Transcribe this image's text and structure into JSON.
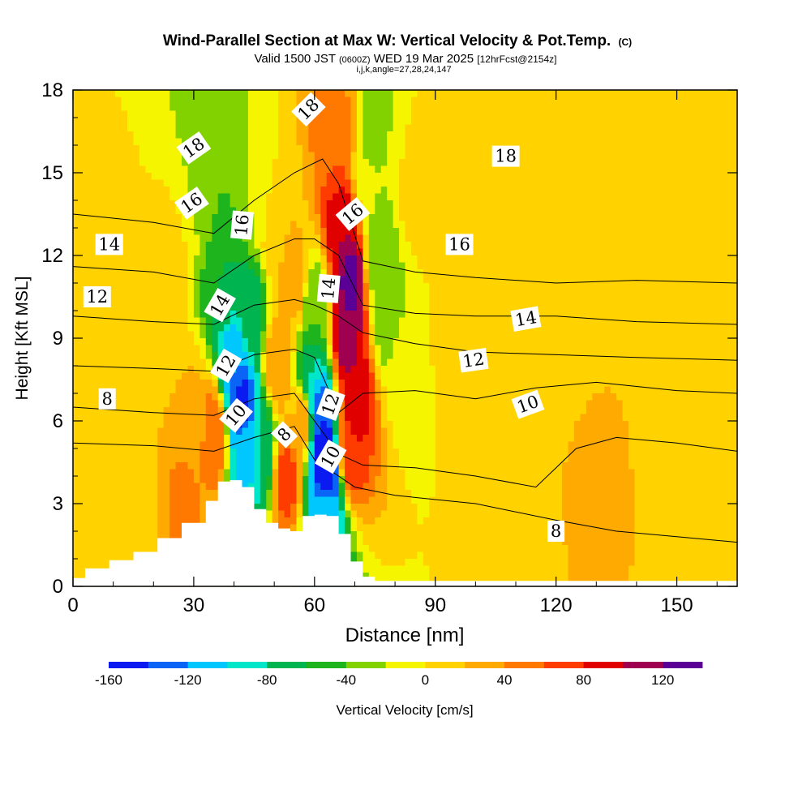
{
  "chart_data": {
    "type": "heatmap",
    "title": "Wind-Parallel Section at Max W: Vertical Velocity & Pot.Temp.",
    "title_mark": "(C)",
    "subtitle_pre": "Valid 1500 JST",
    "subtitle_utc": "(0600Z)",
    "subtitle_date": "WED 19 Mar 2025",
    "subtitle_run": "[12hrFcst@2154z]",
    "subtitle_ijk": "i,j,k,angle=27,28,24,147",
    "xlabel": "Distance [nm]",
    "ylabel": "Height [Kft MSL]",
    "xlim": [
      0,
      165
    ],
    "ylim": [
      0,
      18
    ],
    "x_ticks": [
      "0",
      "30",
      "60",
      "90",
      "120",
      "150"
    ],
    "y_ticks": [
      "0",
      "3",
      "6",
      "9",
      "12",
      "15",
      "18"
    ],
    "colorbar": {
      "label": "Vertical Velocity [cm/s]",
      "tick_labels": [
        "-160",
        "-120",
        "-80",
        "-40",
        "0",
        "40",
        "80",
        "120"
      ],
      "levels": [
        -160,
        -140,
        -120,
        -100,
        -80,
        -60,
        -40,
        -20,
        0,
        20,
        40,
        60,
        80,
        100,
        120,
        140
      ],
      "colors": [
        "#0a1af0",
        "#0a64f5",
        "#00c8ff",
        "#00e6c8",
        "#00b450",
        "#1eb41e",
        "#82d200",
        "#f5f500",
        "#ffd200",
        "#ffaa00",
        "#ff7800",
        "#ff3c00",
        "#e10000",
        "#a00050",
        "#5a0096"
      ]
    },
    "terrain": [
      [
        0,
        0.3
      ],
      [
        3,
        0.65
      ],
      [
        9,
        0.95
      ],
      [
        15,
        1.25
      ],
      [
        21,
        1.75
      ],
      [
        27,
        2.3
      ],
      [
        33,
        3.1
      ],
      [
        36,
        3.8
      ],
      [
        39,
        3.85
      ],
      [
        42,
        3.6
      ],
      [
        45,
        2.8
      ],
      [
        48,
        2.3
      ],
      [
        51,
        2.1
      ],
      [
        54,
        2.0
      ],
      [
        57,
        2.55
      ],
      [
        60,
        2.6
      ],
      [
        63,
        2.55
      ],
      [
        66,
        1.9
      ],
      [
        69,
        0.9
      ],
      [
        72,
        0.35
      ],
      [
        75,
        0.2
      ],
      [
        165,
        0.2
      ]
    ],
    "vv_field": [
      {
        "x": 0,
        "y": 15,
        "w": 0
      },
      {
        "x": 8,
        "y": 12,
        "w": 5
      },
      {
        "x": 5,
        "y": 5,
        "w": 10
      },
      {
        "x": 15,
        "y": 9,
        "w": 15
      },
      {
        "x": 25,
        "y": 12,
        "w": 10
      },
      {
        "x": 15,
        "y": 1.5,
        "w": 0
      },
      {
        "x": 28,
        "y": 3,
        "w": 45
      },
      {
        "x": 30,
        "y": 6,
        "w": 25
      },
      {
        "x": 35,
        "y": 5.5,
        "w": 60
      },
      {
        "x": 30,
        "y": 14,
        "w": -20
      },
      {
        "x": 34,
        "y": 16,
        "w": -40
      },
      {
        "x": 37,
        "y": 11,
        "w": -60
      },
      {
        "x": 40,
        "y": 8,
        "w": -120
      },
      {
        "x": 42,
        "y": 6.5,
        "w": -150
      },
      {
        "x": 43,
        "y": 5,
        "w": -110
      },
      {
        "x": 44,
        "y": 10,
        "w": -70
      },
      {
        "x": 46,
        "y": 14,
        "w": -20
      },
      {
        "x": 47,
        "y": 5,
        "w": -80
      },
      {
        "x": 51,
        "y": 8,
        "w": 40
      },
      {
        "x": 53,
        "y": 4,
        "w": 70
      },
      {
        "x": 50,
        "y": 13,
        "w": 20
      },
      {
        "x": 55,
        "y": 11,
        "w": 30
      },
      {
        "x": 57,
        "y": 6,
        "w": 30
      },
      {
        "x": 59,
        "y": 7.5,
        "w": -80
      },
      {
        "x": 61,
        "y": 6.5,
        "w": -130
      },
      {
        "x": 62,
        "y": 5,
        "w": -160
      },
      {
        "x": 63,
        "y": 4,
        "w": -150
      },
      {
        "x": 60,
        "y": 10,
        "w": -40
      },
      {
        "x": 63,
        "y": 2.5,
        "w": -100
      },
      {
        "x": 66,
        "y": 16,
        "w": 60
      },
      {
        "x": 67,
        "y": 13,
        "w": 100
      },
      {
        "x": 69,
        "y": 11,
        "w": 130
      },
      {
        "x": 68,
        "y": 9,
        "w": 110
      },
      {
        "x": 70,
        "y": 7,
        "w": 100
      },
      {
        "x": 69,
        "y": 5,
        "w": 80
      },
      {
        "x": 67,
        "y": 17.5,
        "w": 40
      },
      {
        "x": 73,
        "y": 15,
        "w": -20
      },
      {
        "x": 76,
        "y": 12,
        "w": -40
      },
      {
        "x": 78,
        "y": 10,
        "w": -40
      },
      {
        "x": 74,
        "y": 17,
        "w": -30
      },
      {
        "x": 82,
        "y": 8,
        "w": -10
      },
      {
        "x": 85,
        "y": 14,
        "w": 5
      },
      {
        "x": 95,
        "y": 10,
        "w": 10
      },
      {
        "x": 100,
        "y": 16,
        "w": 15
      },
      {
        "x": 105,
        "y": 5,
        "w": 5
      },
      {
        "x": 115,
        "y": 13,
        "w": 20
      },
      {
        "x": 125,
        "y": 10,
        "w": 5
      },
      {
        "x": 130,
        "y": 4,
        "w": 25
      },
      {
        "x": 140,
        "y": 14,
        "w": 10
      },
      {
        "x": 150,
        "y": 8,
        "w": 5
      },
      {
        "x": 155,
        "y": 15,
        "w": 15
      },
      {
        "x": 160,
        "y": 3,
        "w": 0
      },
      {
        "x": 95,
        "y": 2,
        "w": 0
      },
      {
        "x": 110,
        "y": 2,
        "w": 15
      }
    ],
    "theta_contours": [
      {
        "label": "8",
        "points": [
          [
            0,
            5.2
          ],
          [
            20,
            5.1
          ],
          [
            35,
            4.9
          ],
          [
            45,
            5.4
          ],
          [
            55,
            5.8
          ],
          [
            60,
            4.6
          ],
          [
            65,
            4.1
          ],
          [
            70,
            3.6
          ],
          [
            80,
            3.3
          ],
          [
            100,
            3.0
          ],
          [
            120,
            2.4
          ],
          [
            135,
            2.0
          ],
          [
            150,
            1.8
          ],
          [
            165,
            1.6
          ]
        ]
      },
      {
        "label": "10",
        "points": [
          [
            0,
            6.5
          ],
          [
            20,
            6.3
          ],
          [
            35,
            6.2
          ],
          [
            45,
            6.8
          ],
          [
            55,
            7.0
          ],
          [
            60,
            6.0
          ],
          [
            66,
            4.8
          ],
          [
            72,
            4.4
          ],
          [
            85,
            4.3
          ],
          [
            100,
            4.0
          ],
          [
            115,
            3.6
          ],
          [
            125,
            5.0
          ],
          [
            135,
            5.4
          ],
          [
            150,
            5.2
          ],
          [
            165,
            4.9
          ]
        ]
      },
      {
        "label": "12",
        "points": [
          [
            0,
            8.0
          ],
          [
            20,
            7.9
          ],
          [
            35,
            7.8
          ],
          [
            45,
            8.4
          ],
          [
            55,
            8.6
          ],
          [
            60,
            8.3
          ],
          [
            66,
            6.3
          ],
          [
            72,
            7.0
          ],
          [
            85,
            7.1
          ],
          [
            100,
            6.8
          ],
          [
            115,
            7.2
          ],
          [
            130,
            7.4
          ],
          [
            150,
            7.1
          ],
          [
            165,
            7.0
          ]
        ]
      },
      {
        "label": "14",
        "points": [
          [
            0,
            9.8
          ],
          [
            20,
            9.6
          ],
          [
            35,
            9.5
          ],
          [
            45,
            10.2
          ],
          [
            55,
            10.4
          ],
          [
            60,
            10.2
          ],
          [
            66,
            9.8
          ],
          [
            72,
            9.2
          ],
          [
            85,
            8.8
          ],
          [
            100,
            8.5
          ],
          [
            120,
            8.4
          ],
          [
            140,
            8.3
          ],
          [
            165,
            8.2
          ]
        ]
      },
      {
        "label": "16",
        "points": [
          [
            0,
            11.6
          ],
          [
            20,
            11.4
          ],
          [
            35,
            11.0
          ],
          [
            45,
            12.0
          ],
          [
            55,
            12.6
          ],
          [
            60,
            12.6
          ],
          [
            66,
            12.0
          ],
          [
            72,
            10.2
          ],
          [
            85,
            9.9
          ],
          [
            100,
            9.8
          ],
          [
            120,
            9.8
          ],
          [
            140,
            9.6
          ],
          [
            165,
            9.5
          ]
        ]
      },
      {
        "label": "18",
        "points": [
          [
            0,
            13.5
          ],
          [
            20,
            13.2
          ],
          [
            35,
            12.8
          ],
          [
            45,
            14.0
          ],
          [
            55,
            15.0
          ],
          [
            62,
            15.5
          ],
          [
            66,
            14.6
          ],
          [
            72,
            11.8
          ],
          [
            85,
            11.4
          ],
          [
            100,
            11.2
          ],
          [
            120,
            11.0
          ],
          [
            140,
            11.1
          ],
          [
            165,
            11.0
          ]
        ]
      }
    ],
    "contour_labels": [
      {
        "text": "18",
        "x": 30,
        "y": 15.9,
        "angle": -35
      },
      {
        "text": "16",
        "x": 29.5,
        "y": 13.9,
        "angle": -35
      },
      {
        "text": "16",
        "x": 42,
        "y": 13.1,
        "angle": -85
      },
      {
        "text": "14",
        "x": 36.5,
        "y": 10.2,
        "angle": -60
      },
      {
        "text": "12",
        "x": 38,
        "y": 8.0,
        "angle": -60
      },
      {
        "text": "10",
        "x": 40.5,
        "y": 6.2,
        "angle": -50
      },
      {
        "text": "8",
        "x": 52.5,
        "y": 5.5,
        "angle": -45
      },
      {
        "text": "18",
        "x": 58.5,
        "y": 17.3,
        "angle": -45
      },
      {
        "text": "16",
        "x": 69.5,
        "y": 13.5,
        "angle": -40
      },
      {
        "text": "14",
        "x": 63.5,
        "y": 10.8,
        "angle": -85
      },
      {
        "text": "12",
        "x": 64,
        "y": 6.6,
        "angle": -70
      },
      {
        "text": "10",
        "x": 64,
        "y": 4.7,
        "angle": -60
      },
      {
        "text": "14",
        "x": 9,
        "y": 12.4,
        "angle": 0
      },
      {
        "text": "12",
        "x": 6,
        "y": 10.5,
        "angle": 0
      },
      {
        "text": "8",
        "x": 8.5,
        "y": 6.8,
        "angle": 0
      },
      {
        "text": "18",
        "x": 107.5,
        "y": 15.6,
        "angle": 0
      },
      {
        "text": "16",
        "x": 96,
        "y": 12.4,
        "angle": 0
      },
      {
        "text": "14",
        "x": 112.5,
        "y": 9.7,
        "angle": -10
      },
      {
        "text": "12",
        "x": 99.5,
        "y": 8.2,
        "angle": -8
      },
      {
        "text": "10",
        "x": 113,
        "y": 6.6,
        "angle": -20
      },
      {
        "text": "8",
        "x": 120,
        "y": 2.0,
        "angle": 0
      }
    ]
  }
}
